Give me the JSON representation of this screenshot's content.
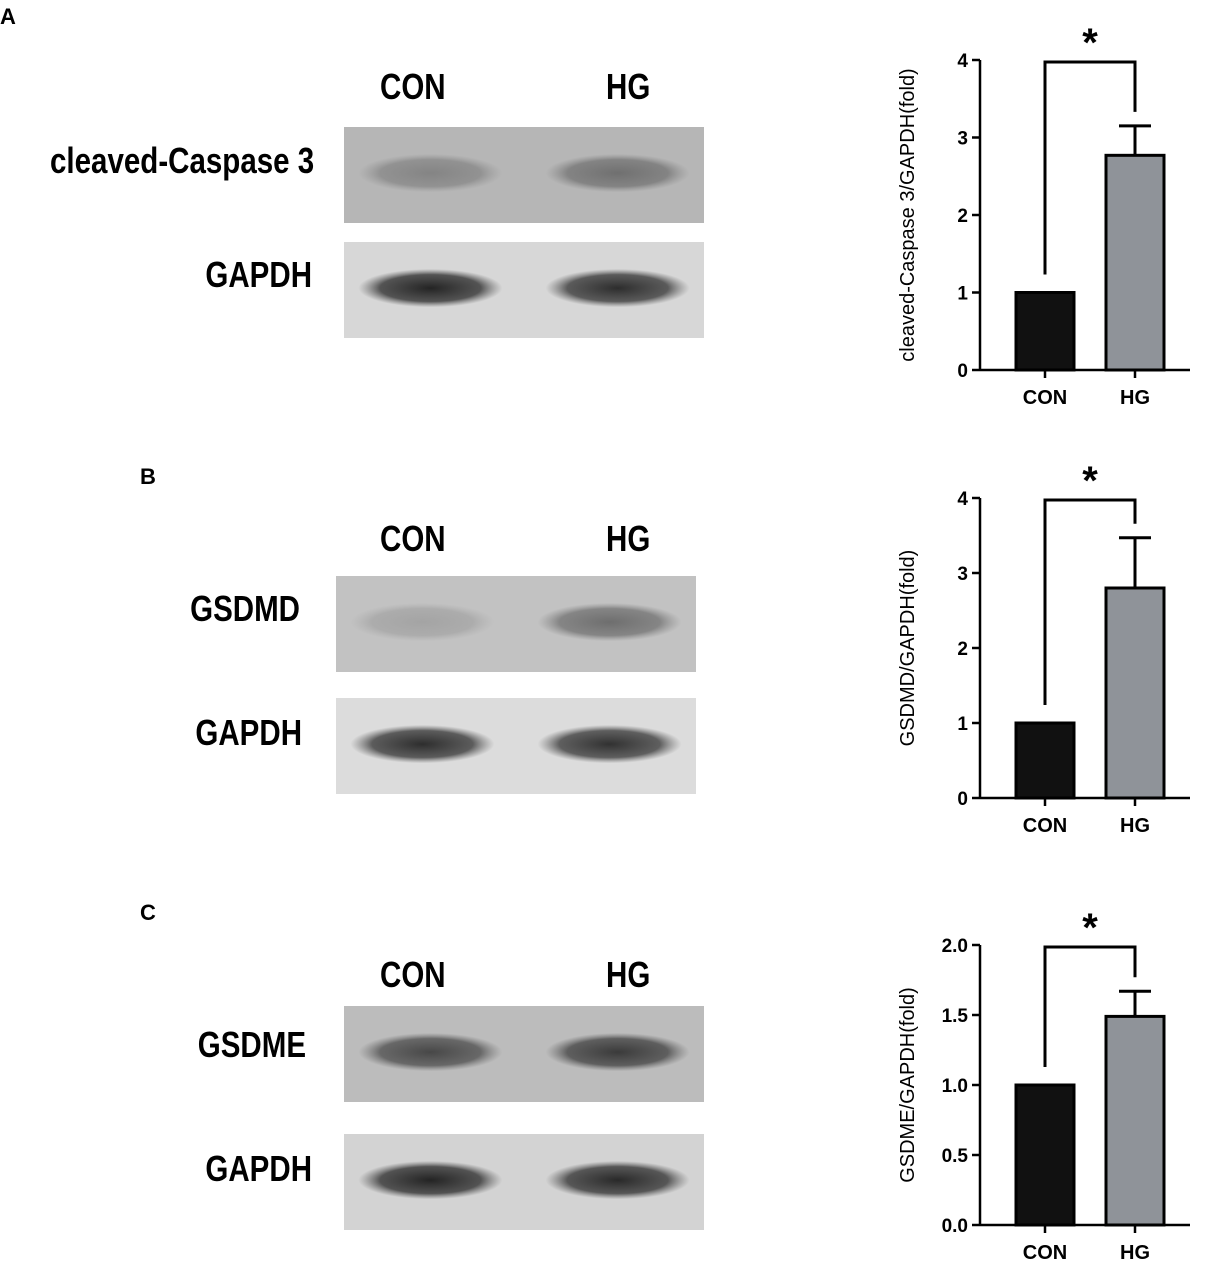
{
  "panels": [
    {
      "letter": "A",
      "lanes": [
        "CON",
        "HG"
      ],
      "blots": [
        {
          "label": "cleaved-Caspase 3",
          "bg": "#b6b6b6",
          "band": [
            0.32,
            0.45
          ]
        },
        {
          "label": "GAPDH",
          "bg": "#d7d7d7",
          "band": [
            0.95,
            0.9
          ]
        }
      ]
    },
    {
      "letter": "B",
      "lanes": [
        "CON",
        "HG"
      ],
      "blots": [
        {
          "label": "GSDMD",
          "bg": "#c2c2c2",
          "band": [
            0.18,
            0.5
          ]
        },
        {
          "label": "GAPDH",
          "bg": "#dcdcdc",
          "band": [
            0.9,
            0.88
          ]
        }
      ]
    },
    {
      "letter": "C",
      "lanes": [
        "CON",
        "HG"
      ],
      "blots": [
        {
          "label": "GSDME",
          "bg": "#bcbcbc",
          "band": [
            0.72,
            0.8
          ]
        },
        {
          "label": "GAPDH",
          "bg": "#d3d3d3",
          "band": [
            0.95,
            0.92
          ]
        }
      ]
    }
  ],
  "colors": {
    "con_bar": "#111111",
    "hg_bar": "#8f9399",
    "axis": "#000000"
  },
  "chart_data": [
    {
      "type": "bar",
      "categories": [
        "CON",
        "HG"
      ],
      "values": [
        1.0,
        2.77
      ],
      "errors": [
        0,
        0.38
      ],
      "ylabel": "cleaved-Caspase 3/GAPDH(fold)",
      "ylim": [
        0,
        4
      ],
      "yticks": [
        "0",
        "1",
        "2",
        "3",
        "4"
      ],
      "ytick_values": [
        0,
        1,
        2,
        3,
        4
      ],
      "significance": "*"
    },
    {
      "type": "bar",
      "categories": [
        "CON",
        "HG"
      ],
      "values": [
        1.0,
        2.8
      ],
      "errors": [
        0,
        0.67
      ],
      "ylabel": "GSDMD/GAPDH(fold)",
      "ylim": [
        0,
        4
      ],
      "yticks": [
        "0",
        "1",
        "2",
        "3",
        "4"
      ],
      "ytick_values": [
        0,
        1,
        2,
        3,
        4
      ],
      "significance": "*"
    },
    {
      "type": "bar",
      "categories": [
        "CON",
        "HG"
      ],
      "values": [
        1.0,
        1.49
      ],
      "errors": [
        0,
        0.18
      ],
      "ylabel": "GSDME/GAPDH(fold)",
      "ylim": [
        0,
        2
      ],
      "yticks": [
        "0.0",
        "0.5",
        "1.0",
        "1.5",
        "2.0"
      ],
      "ytick_values": [
        0,
        0.5,
        1.0,
        1.5,
        2.0
      ],
      "significance": "*"
    }
  ]
}
